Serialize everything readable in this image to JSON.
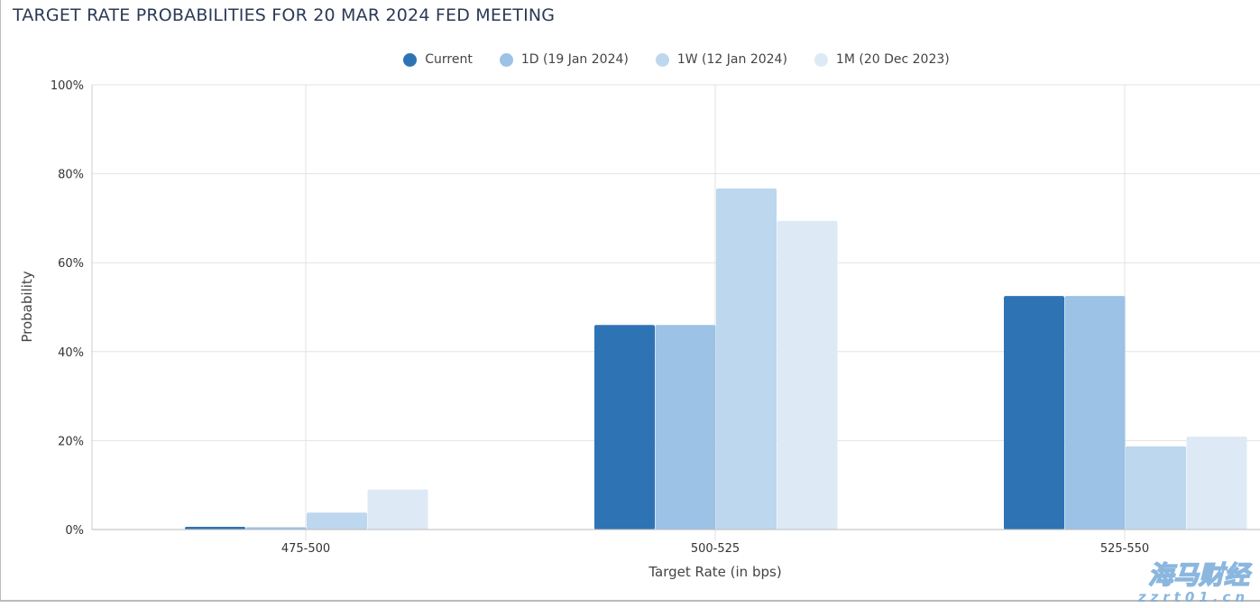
{
  "title": "TARGET RATE PROBABILITIES FOR 20 MAR 2024 FED MEETING",
  "chart_data": {
    "type": "bar",
    "title": "TARGET RATE PROBABILITIES FOR 20 MAR 2024 FED MEETING",
    "xlabel": "Target Rate (in bps)",
    "ylabel": "Probability",
    "categories": [
      "475-500",
      "500-525",
      "525-550"
    ],
    "series": [
      {
        "name": "Current",
        "color": "#2e74b5",
        "values": [
          0.6,
          46.0,
          52.5
        ]
      },
      {
        "name": "1D (19 Jan 2024)",
        "color": "#9cc2e5",
        "values": [
          0.5,
          46.0,
          52.5
        ]
      },
      {
        "name": "1W (12 Jan 2024)",
        "color": "#bdd7ee",
        "values": [
          3.8,
          76.7,
          18.7
        ]
      },
      {
        "name": "1M (20 Dec 2023)",
        "color": "#ddeaf6",
        "values": [
          9.0,
          69.4,
          20.9
        ]
      }
    ],
    "ylim": [
      0,
      100
    ],
    "yticks": [
      "0%",
      "20%",
      "40%",
      "60%",
      "80%",
      "100%"
    ],
    "grid": true,
    "legend": "top"
  },
  "watermark": {
    "line1": "海马财经",
    "line2": "zzrt01.cn"
  }
}
